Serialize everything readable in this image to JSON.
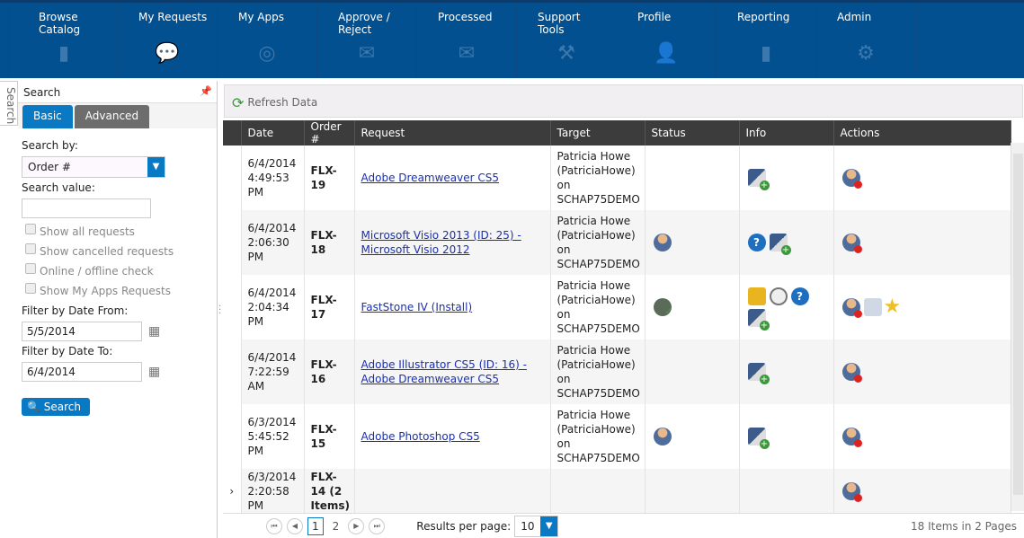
{
  "nav": [
    {
      "label": "Browse Catalog",
      "icon": "notebook-icon",
      "glyph": "▮"
    },
    {
      "label": "My Requests",
      "icon": "chat-bubbles-icon",
      "glyph": "💬",
      "active": true
    },
    {
      "label": "My Apps",
      "icon": "disc-icon",
      "glyph": "◎"
    },
    {
      "label": "Approve / Reject",
      "icon": "envelope-open-icon",
      "glyph": "✉"
    },
    {
      "label": "Processed",
      "icon": "envelope-icon",
      "glyph": "✉"
    },
    {
      "label": "Support Tools",
      "icon": "tools-icon",
      "glyph": "⚒"
    },
    {
      "label": "Profile",
      "icon": "person-icon",
      "glyph": "👤"
    },
    {
      "label": "Reporting",
      "icon": "bar-chart-icon",
      "glyph": "▮"
    },
    {
      "label": "Admin",
      "icon": "gears-icon",
      "glyph": "⚙"
    }
  ],
  "side": {
    "tab_label": "Search",
    "title": "Search",
    "tabs": [
      "Basic",
      "Advanced"
    ],
    "search_by_label": "Search by:",
    "search_by_value": "Order #",
    "search_value_label": "Search value:",
    "search_value": "",
    "checkboxes": [
      "Show all requests",
      "Show cancelled requests",
      "Online / offline check",
      "Show My Apps Requests"
    ],
    "date_from_label": "Filter by Date From:",
    "date_from": "5/5/2014",
    "date_to_label": "Filter by Date To:",
    "date_to": "6/4/2014",
    "search_button": "Search"
  },
  "toolbar": {
    "refresh": "Refresh Data"
  },
  "columns": [
    "Date",
    "Order #",
    "Request",
    "Target",
    "Status",
    "Info",
    "Actions"
  ],
  "rows": [
    {
      "date": "6/4/2014 4:49:53 PM",
      "order": "FLX-19",
      "request": "Adobe Dreamweaver CS5",
      "target": "Patricia Howe (PatriciaHowe) on SCHAP75DEMO",
      "status": [],
      "info": [
        "pkg"
      ],
      "actions": [
        "user-x"
      ]
    },
    {
      "date": "6/4/2014 2:06:30 PM",
      "order": "FLX-18",
      "request": "Microsoft Visio 2013 (ID: 25) - Microsoft Visio 2012",
      "target": "Patricia Howe (PatriciaHowe) on SCHAP75DEMO",
      "status": [
        "user"
      ],
      "info": [
        "q",
        "pkg"
      ],
      "actions": [
        "user-x"
      ]
    },
    {
      "date": "6/4/2014 2:04:34 PM",
      "order": "FLX-17",
      "request": "FastStone IV (Install)",
      "target": "Patricia Howe (PatriciaHowe) on SCHAP75DEMO",
      "status": [
        "ok"
      ],
      "info": [
        "lock",
        "clock",
        "q",
        "pkg"
      ],
      "actions": [
        "user-x",
        "doc",
        "star"
      ]
    },
    {
      "date": "6/4/2014 7:22:59 AM",
      "order": "FLX-16",
      "request": "Adobe Illustrator CS5 (ID: 16) - Adobe Dreamweaver CS5",
      "target": "Patricia Howe (PatriciaHowe) on SCHAP75DEMO",
      "status": [],
      "info": [
        "pkg"
      ],
      "actions": [
        "user-x"
      ]
    },
    {
      "date": "6/3/2014 5:45:52 PM",
      "order": "FLX-15",
      "request": "Adobe Photoshop CS5",
      "target": "Patricia Howe (PatriciaHowe) on SCHAP75DEMO",
      "status": [
        "user"
      ],
      "info": [
        "pkg"
      ],
      "actions": [
        "user-x"
      ]
    },
    {
      "date": "6/3/2014 2:20:58 PM",
      "order": "FLX-14 (2 Items)",
      "request": "",
      "target": "",
      "status": [],
      "info": [],
      "actions": [
        "user-x"
      ],
      "expandable": true
    }
  ],
  "pager": {
    "pages": [
      "1",
      "2"
    ],
    "current": "1",
    "results_label": "Results per page:",
    "results_value": "10",
    "summary": "18 Items in 2 Pages"
  },
  "colors": {
    "nav_bg": "#02508f",
    "accent": "#0979c4",
    "header_bg": "#3c3c3c"
  }
}
